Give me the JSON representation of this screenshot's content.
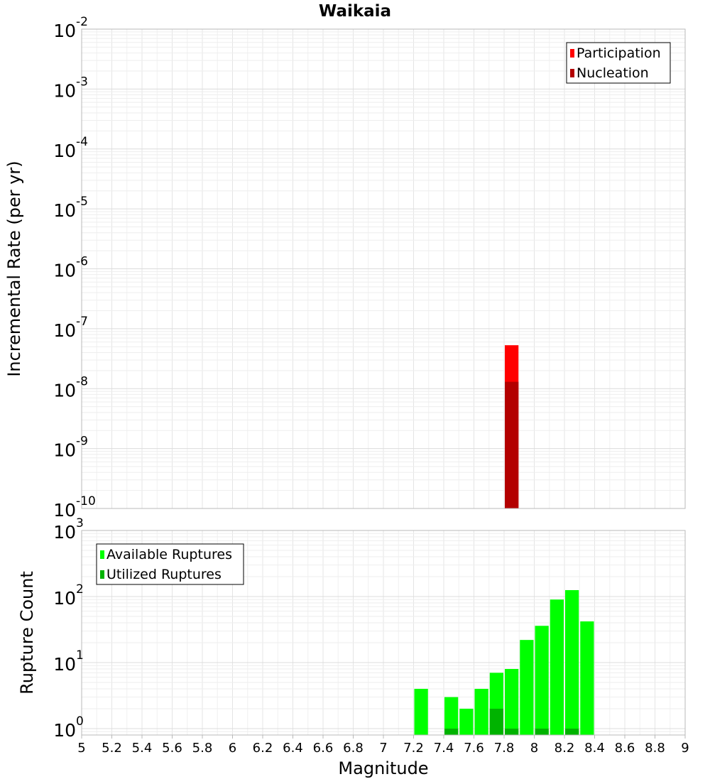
{
  "chart_data": [
    {
      "type": "bar",
      "title": "Waikaia",
      "ylabel": "Incremental Rate (per yr)",
      "xlabel": "",
      "y_scale": "log",
      "ylim": [
        1e-10,
        0.01
      ],
      "xlim": [
        5,
        9
      ],
      "grid": true,
      "legend_position": "top-right",
      "y_tick_exponents": [
        "-10",
        "-9",
        "-8",
        "-7",
        "-6",
        "-5",
        "-4",
        "-3",
        "-2"
      ],
      "y_tick_base": "10",
      "series": [
        {
          "name": "Participation",
          "color": "#ff0000",
          "points": [
            {
              "x": 7.85,
              "y": 5.3e-08
            }
          ]
        },
        {
          "name": "Nucleation",
          "color": "#b30000",
          "points": [
            {
              "x": 7.85,
              "y": 1.3e-08
            }
          ]
        }
      ]
    },
    {
      "type": "bar",
      "title": "",
      "ylabel": "Rupture Count",
      "xlabel": "Magnitude",
      "y_scale": "log",
      "ylim": [
        0.8,
        1000
      ],
      "xlim": [
        5,
        9
      ],
      "grid": true,
      "legend_position": "top-left",
      "x_tick_labels": [
        "5",
        "5.2",
        "5.4",
        "5.6",
        "5.8",
        "6",
        "6.2",
        "6.4",
        "6.6",
        "6.8",
        "7",
        "7.2",
        "7.4",
        "7.6",
        "7.8",
        "8",
        "8.2",
        "8.4",
        "8.6",
        "8.8",
        "9"
      ],
      "y_tick_exponents": [
        "0",
        "1",
        "2",
        "3"
      ],
      "y_tick_base": "10",
      "series": [
        {
          "name": "Available Ruptures",
          "color": "#00ff00",
          "points": [
            {
              "x": 7.25,
              "y": 4
            },
            {
              "x": 7.45,
              "y": 3
            },
            {
              "x": 7.55,
              "y": 2
            },
            {
              "x": 7.65,
              "y": 4
            },
            {
              "x": 7.75,
              "y": 7
            },
            {
              "x": 7.85,
              "y": 8
            },
            {
              "x": 7.95,
              "y": 22
            },
            {
              "x": 8.05,
              "y": 36
            },
            {
              "x": 8.15,
              "y": 90
            },
            {
              "x": 8.25,
              "y": 125
            },
            {
              "x": 8.35,
              "y": 42
            }
          ]
        },
        {
          "name": "Utilized Ruptures",
          "color": "#00b300",
          "points": [
            {
              "x": 7.45,
              "y": 1
            },
            {
              "x": 7.75,
              "y": 2
            },
            {
              "x": 7.85,
              "y": 1
            },
            {
              "x": 8.05,
              "y": 1
            },
            {
              "x": 8.25,
              "y": 1
            }
          ]
        }
      ]
    }
  ]
}
